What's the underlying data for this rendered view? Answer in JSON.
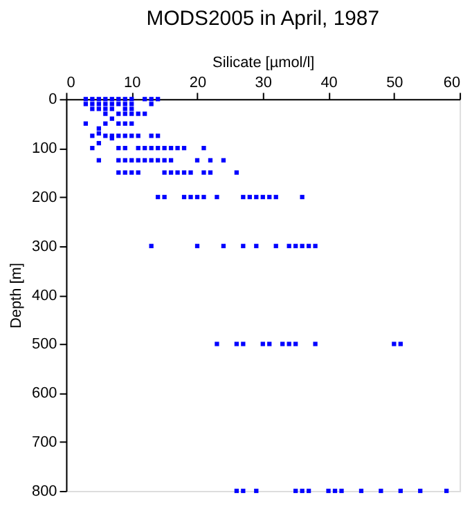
{
  "chart_data": {
    "type": "scatter",
    "title": "MODS2005 in April, 1987",
    "xlabel": "Silicate [µmol/l]",
    "ylabel": "Depth [m]",
    "xlim": [
      0,
      60
    ],
    "xticks": [
      0,
      10,
      20,
      30,
      40,
      50,
      60
    ],
    "ylim": [
      800,
      0
    ],
    "yticks": [
      0,
      100,
      200,
      300,
      400,
      500,
      600,
      700,
      800
    ],
    "grid": false,
    "marker": "square",
    "series": [
      {
        "color": "#0000ff",
        "x": [
          3,
          4,
          5,
          6,
          7,
          8,
          9,
          10,
          12,
          13,
          14,
          3,
          4,
          5,
          6,
          7,
          8,
          9,
          10,
          13,
          4,
          5,
          6,
          7,
          9,
          10,
          6,
          8,
          9,
          10,
          11,
          12,
          7,
          3,
          6,
          8,
          9,
          10,
          5,
          5,
          4,
          6,
          7,
          8,
          9,
          10,
          11,
          13,
          14,
          7,
          5,
          4,
          8,
          9,
          11,
          12,
          13,
          14,
          15,
          16,
          17,
          18,
          21,
          5,
          8,
          9,
          10,
          11,
          12,
          13,
          14,
          15,
          16,
          20,
          22,
          24,
          8,
          9,
          10,
          11,
          15,
          16,
          17,
          18,
          19,
          21,
          22,
          26,
          14,
          15,
          18,
          19,
          20,
          21,
          23,
          27,
          28,
          29,
          30,
          31,
          32,
          36,
          13,
          20,
          24,
          27,
          29,
          32,
          34,
          35,
          36,
          37,
          38,
          23,
          26,
          27,
          30,
          31,
          33,
          34,
          35,
          38,
          50,
          51,
          26,
          27,
          29,
          35,
          36,
          37,
          40,
          41,
          42,
          45,
          48,
          51,
          54,
          58
        ],
        "values": [
          0,
          0,
          0,
          0,
          0,
          0,
          0,
          0,
          0,
          0,
          0,
          10,
          10,
          10,
          10,
          10,
          10,
          10,
          10,
          10,
          20,
          20,
          20,
          20,
          20,
          20,
          30,
          30,
          30,
          30,
          30,
          30,
          40,
          50,
          50,
          50,
          50,
          50,
          60,
          70,
          75,
          75,
          75,
          75,
          75,
          75,
          75,
          75,
          75,
          80,
          90,
          100,
          100,
          100,
          100,
          100,
          100,
          100,
          100,
          100,
          100,
          100,
          100,
          125,
          125,
          125,
          125,
          125,
          125,
          125,
          125,
          125,
          125,
          125,
          125,
          125,
          150,
          150,
          150,
          150,
          150,
          150,
          150,
          150,
          150,
          150,
          150,
          150,
          200,
          200,
          200,
          200,
          200,
          200,
          200,
          200,
          200,
          200,
          200,
          200,
          200,
          200,
          300,
          300,
          300,
          300,
          300,
          300,
          300,
          300,
          300,
          300,
          300,
          500,
          500,
          500,
          500,
          500,
          500,
          500,
          500,
          500,
          500,
          500,
          800,
          800,
          800,
          800,
          800,
          800,
          800,
          800,
          800,
          800,
          800,
          800,
          800,
          800
        ]
      }
    ]
  }
}
